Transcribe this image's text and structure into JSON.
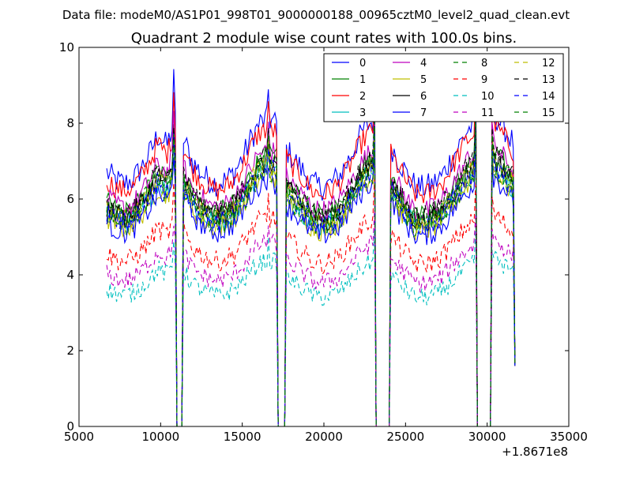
{
  "suptitle": "Data file: modeM0/AS1P01_998T01_9000000188_00965cztM0_level2_quad_clean.evt",
  "chart_data": {
    "type": "line",
    "title": "Quadrant 2 module wise count rates with 100.0s bins.",
    "xlabel": "",
    "ylabel": "",
    "x_offset_label": "+1.8671e8",
    "xlim": [
      5000,
      35000
    ],
    "ylim": [
      0,
      10
    ],
    "xticks": [
      5000,
      10000,
      15000,
      20000,
      25000,
      30000,
      35000
    ],
    "xtick_labels": [
      "5000",
      "10000",
      "15000",
      "20000",
      "25000",
      "30000",
      "35000"
    ],
    "yticks": [
      0,
      2,
      4,
      6,
      8,
      10
    ],
    "ytick_labels": [
      "0",
      "2",
      "4",
      "6",
      "8",
      "10"
    ],
    "grid": false,
    "legend_position": "top-right",
    "legend_columns": 4,
    "x_start": 6700,
    "x_step": 100,
    "gaps": [
      [
        11000,
        11300
      ],
      [
        17200,
        17600
      ],
      [
        23200,
        24000
      ],
      [
        29400,
        30200
      ]
    ],
    "segments": [
      {
        "start": 6700,
        "end": 10900,
        "base": [
          6.7,
          6.5,
          6.4,
          6.5,
          6.8,
          7.2,
          7.7,
          7.4,
          8.1
        ]
      },
      {
        "start": 11400,
        "end": 17100,
        "base": [
          7.6,
          7.0,
          6.7,
          6.5,
          6.4,
          6.5,
          6.7,
          7.1,
          7.6,
          8.0,
          8.1,
          8.0
        ]
      },
      {
        "start": 17700,
        "end": 23100,
        "base": [
          7.3,
          7.0,
          6.7,
          6.4,
          6.3,
          6.4,
          6.6,
          7.0,
          7.5,
          7.9,
          8.1
        ]
      },
      {
        "start": 24100,
        "end": 29300,
        "base": [
          7.4,
          7.0,
          6.6,
          6.3,
          6.3,
          6.4,
          6.6,
          7.0,
          7.4,
          7.8,
          8.0
        ]
      },
      {
        "start": 30300,
        "end": 31700,
        "base": [
          8.3,
          7.9,
          7.4
        ]
      }
    ],
    "spikes": [
      {
        "x": 10800,
        "offset": 1.2
      },
      {
        "x": 16600,
        "offset": 0.8
      },
      {
        "x": 23100,
        "offset": 1.3
      },
      {
        "x": 24000,
        "offset": 1.0
      },
      {
        "x": 29300,
        "offset": 1.5
      },
      {
        "x": 30300,
        "offset": 0.5
      }
    ],
    "end_value": 1.6,
    "series": [
      {
        "name": "0",
        "color": "#0000ff",
        "dash": "solid",
        "level": 1.0,
        "noise": 0.35
      },
      {
        "name": "1",
        "color": "#008000",
        "dash": "solid",
        "level": 0.88,
        "noise": 0.3
      },
      {
        "name": "2",
        "color": "#ff0000",
        "dash": "solid",
        "level": 0.97,
        "noise": 0.3
      },
      {
        "name": "3",
        "color": "#00bfbf",
        "dash": "solid",
        "level": 0.84,
        "noise": 0.3
      },
      {
        "name": "4",
        "color": "#bf00bf",
        "dash": "solid",
        "level": 0.9,
        "noise": 0.3
      },
      {
        "name": "5",
        "color": "#bfbf00",
        "dash": "solid",
        "level": 0.82,
        "noise": 0.3
      },
      {
        "name": "6",
        "color": "#000000",
        "dash": "solid",
        "level": 0.86,
        "noise": 0.3
      },
      {
        "name": "7",
        "color": "#0000ff",
        "dash": "solid",
        "level": 0.8,
        "noise": 0.3
      },
      {
        "name": "8",
        "color": "#008000",
        "dash": "dashed",
        "level": 0.83,
        "noise": 0.3
      },
      {
        "name": "9",
        "color": "#ff0000",
        "dash": "dashed",
        "level": 0.68,
        "noise": 0.28
      },
      {
        "name": "10",
        "color": "#00bfbf",
        "dash": "dashed",
        "level": 0.54,
        "noise": 0.25
      },
      {
        "name": "11",
        "color": "#bf00bf",
        "dash": "dashed",
        "level": 0.6,
        "noise": 0.25
      },
      {
        "name": "12",
        "color": "#bfbf00",
        "dash": "dashed",
        "level": 0.85,
        "noise": 0.3
      },
      {
        "name": "13",
        "color": "#000000",
        "dash": "dashed",
        "level": 0.88,
        "noise": 0.3
      },
      {
        "name": "14",
        "color": "#0000ff",
        "dash": "dashed",
        "level": 0.84,
        "noise": 0.3
      },
      {
        "name": "15",
        "color": "#008000",
        "dash": "dashed",
        "level": 0.86,
        "noise": 0.3
      }
    ]
  }
}
